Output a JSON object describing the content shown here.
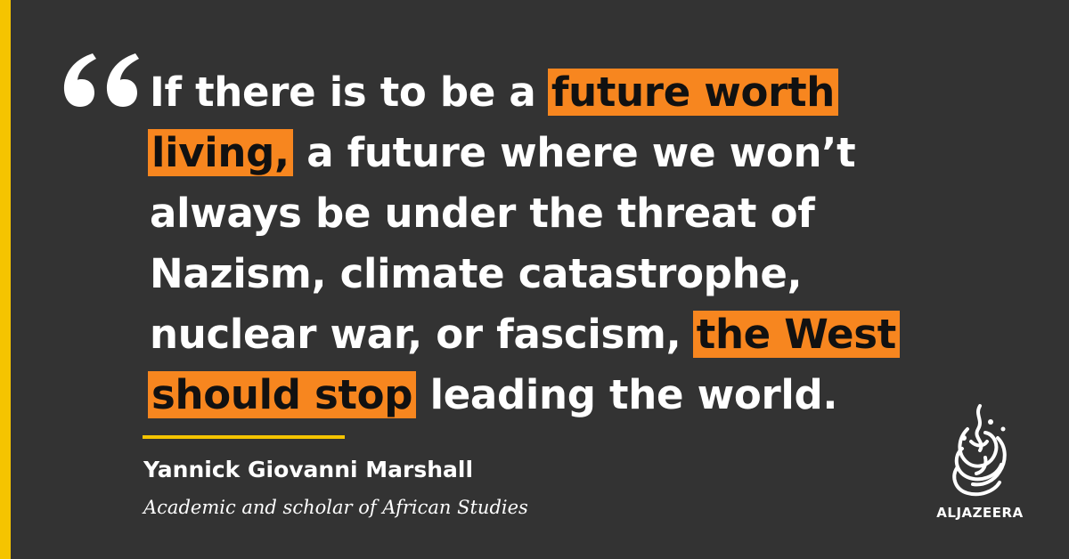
{
  "quote": {
    "lines": [
      [
        {
          "text": "If there is to be a ",
          "hl": false
        },
        {
          "text": "future worth",
          "hl": true
        }
      ],
      [
        {
          "text": "living,",
          "hl": true
        },
        {
          "text": " a future where we won’t",
          "hl": false
        }
      ],
      [
        {
          "text": "always be under the threat of",
          "hl": false
        }
      ],
      [
        {
          "text": "Nazism, climate catastrophe,",
          "hl": false
        }
      ],
      [
        {
          "text": "nuclear war, or fascism, ",
          "hl": false
        },
        {
          "text": "the West",
          "hl": true
        }
      ],
      [
        {
          "text": "should stop",
          "hl": true
        },
        {
          "text": " leading the world.",
          "hl": false
        }
      ]
    ]
  },
  "attribution": {
    "name": "Yannick Giovanni Marshall",
    "role": "Academic and scholar of African Studies"
  },
  "logo": {
    "wordmark": "ALJAZEERA",
    "icon": "aljazeera-calligraphy-logo"
  },
  "colors": {
    "background": "#333333",
    "accent_bar": "#f5c400",
    "highlight": "#f7861f",
    "text": "#ffffff",
    "highlight_text": "#111111"
  }
}
